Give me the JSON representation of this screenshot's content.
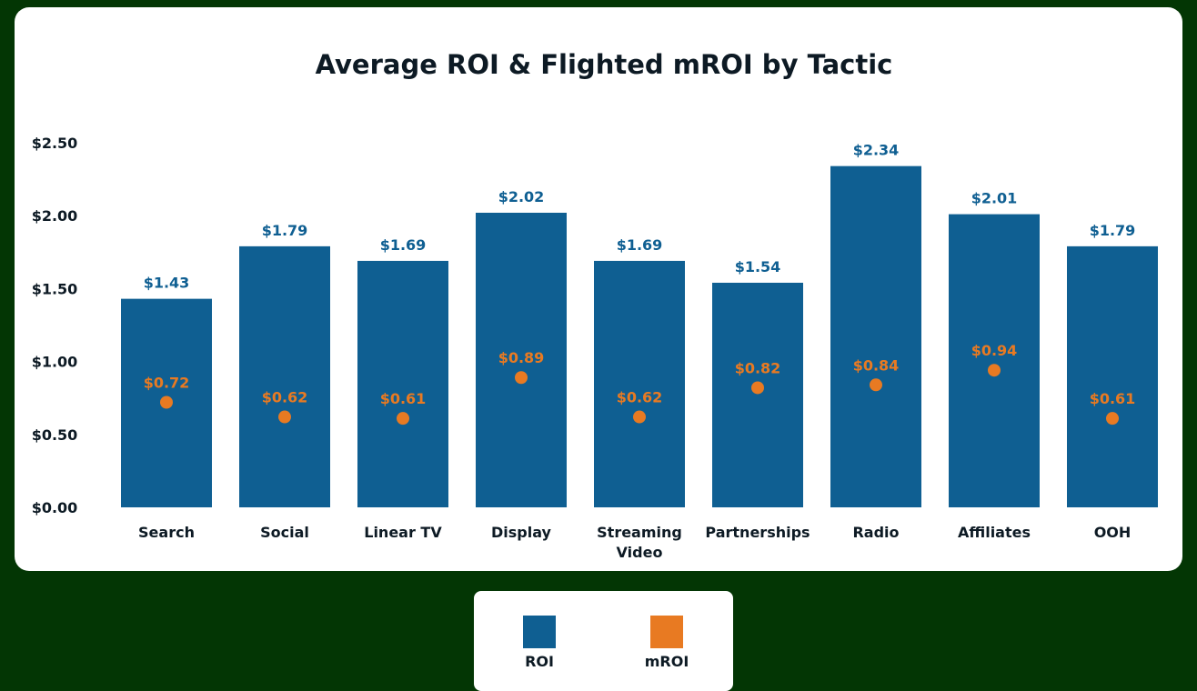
{
  "chart_data": {
    "type": "bar",
    "title": "Average ROI & Flighted mROI by Tactic",
    "xlabel": "",
    "ylabel": "",
    "ylim": [
      0,
      2.5
    ],
    "yticks": [
      "$0.00",
      "$0.50",
      "$1.00",
      "$1.50",
      "$2.00",
      "$2.50"
    ],
    "ytick_values": [
      0,
      0.5,
      1,
      1.5,
      2,
      2.5
    ],
    "categories": [
      "Search",
      "Social",
      "Linear TV",
      "Display",
      "Streaming Video",
      "Partnerships",
      "Radio",
      "Affiliates",
      "OOH"
    ],
    "series": [
      {
        "name": "ROI",
        "type": "bar",
        "color": "#0f5f92",
        "values": [
          1.43,
          1.79,
          1.69,
          2.02,
          1.69,
          1.54,
          2.34,
          2.01,
          1.79
        ],
        "labels": [
          "$1.43",
          "$1.79",
          "$1.69",
          "$2.02",
          "$1.69",
          "$1.54",
          "$2.34",
          "$2.01",
          "$1.79"
        ]
      },
      {
        "name": "mROI",
        "type": "scatter",
        "color": "#e87a22",
        "values": [
          0.72,
          0.62,
          0.61,
          0.89,
          0.62,
          0.82,
          0.84,
          0.94,
          0.61
        ],
        "labels": [
          "$0.72",
          "$0.62",
          "$0.61",
          "$0.89",
          "$0.62",
          "$0.82",
          "$0.84",
          "$0.94",
          "$0.61"
        ]
      }
    ],
    "grid": false,
    "legend_placement": "bottom"
  },
  "colors": {
    "background": "#033604",
    "card": "#ffffff",
    "label_roi": "#0f5f92",
    "label_mroi": "#e87a22"
  }
}
